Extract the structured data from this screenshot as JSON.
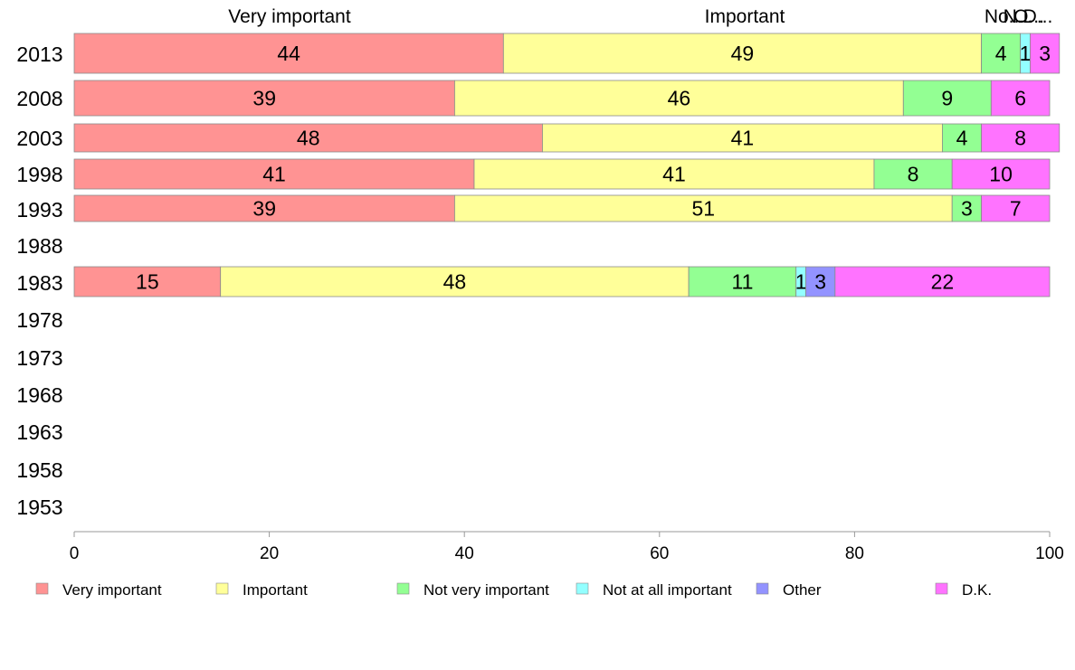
{
  "chart_data": {
    "type": "bar",
    "orientation": "horizontal",
    "stacked": true,
    "categories": [
      "2013",
      "2008",
      "2003",
      "1998",
      "1993",
      "1988",
      "1983",
      "1978",
      "1973",
      "1968",
      "1963",
      "1958",
      "1953"
    ],
    "series": [
      {
        "name": "Very important",
        "color": "#ff9393",
        "values": [
          44,
          39,
          48,
          41,
          39,
          null,
          15,
          null,
          null,
          null,
          null,
          null,
          null
        ]
      },
      {
        "name": "Important",
        "color": "#ffff99",
        "values": [
          49,
          46,
          41,
          41,
          51,
          null,
          48,
          null,
          null,
          null,
          null,
          null,
          null
        ]
      },
      {
        "name": "Not very important",
        "color": "#93ff93",
        "values": [
          4,
          9,
          4,
          8,
          3,
          null,
          11,
          null,
          null,
          null,
          null,
          null,
          null
        ]
      },
      {
        "name": "Not at all important",
        "color": "#93ffff",
        "values": [
          1,
          0,
          0,
          0,
          0,
          null,
          1,
          null,
          null,
          null,
          null,
          null,
          null
        ]
      },
      {
        "name": "Other",
        "color": "#9393ff",
        "values": [
          0,
          0,
          0,
          0,
          0,
          null,
          3,
          null,
          null,
          null,
          null,
          null,
          null
        ]
      },
      {
        "name": "D.K.",
        "color": "#ff73ff",
        "values": [
          3,
          6,
          8,
          10,
          7,
          null,
          22,
          null,
          null,
          null,
          null,
          null,
          null
        ]
      }
    ],
    "top_labels": [
      "Very important",
      "Important",
      "No...",
      "N...",
      "O...",
      "D..."
    ],
    "xlim": [
      0,
      100
    ],
    "xticks": [
      0,
      20,
      40,
      60,
      80,
      100
    ],
    "legend_position": "bottom",
    "grid": false
  }
}
